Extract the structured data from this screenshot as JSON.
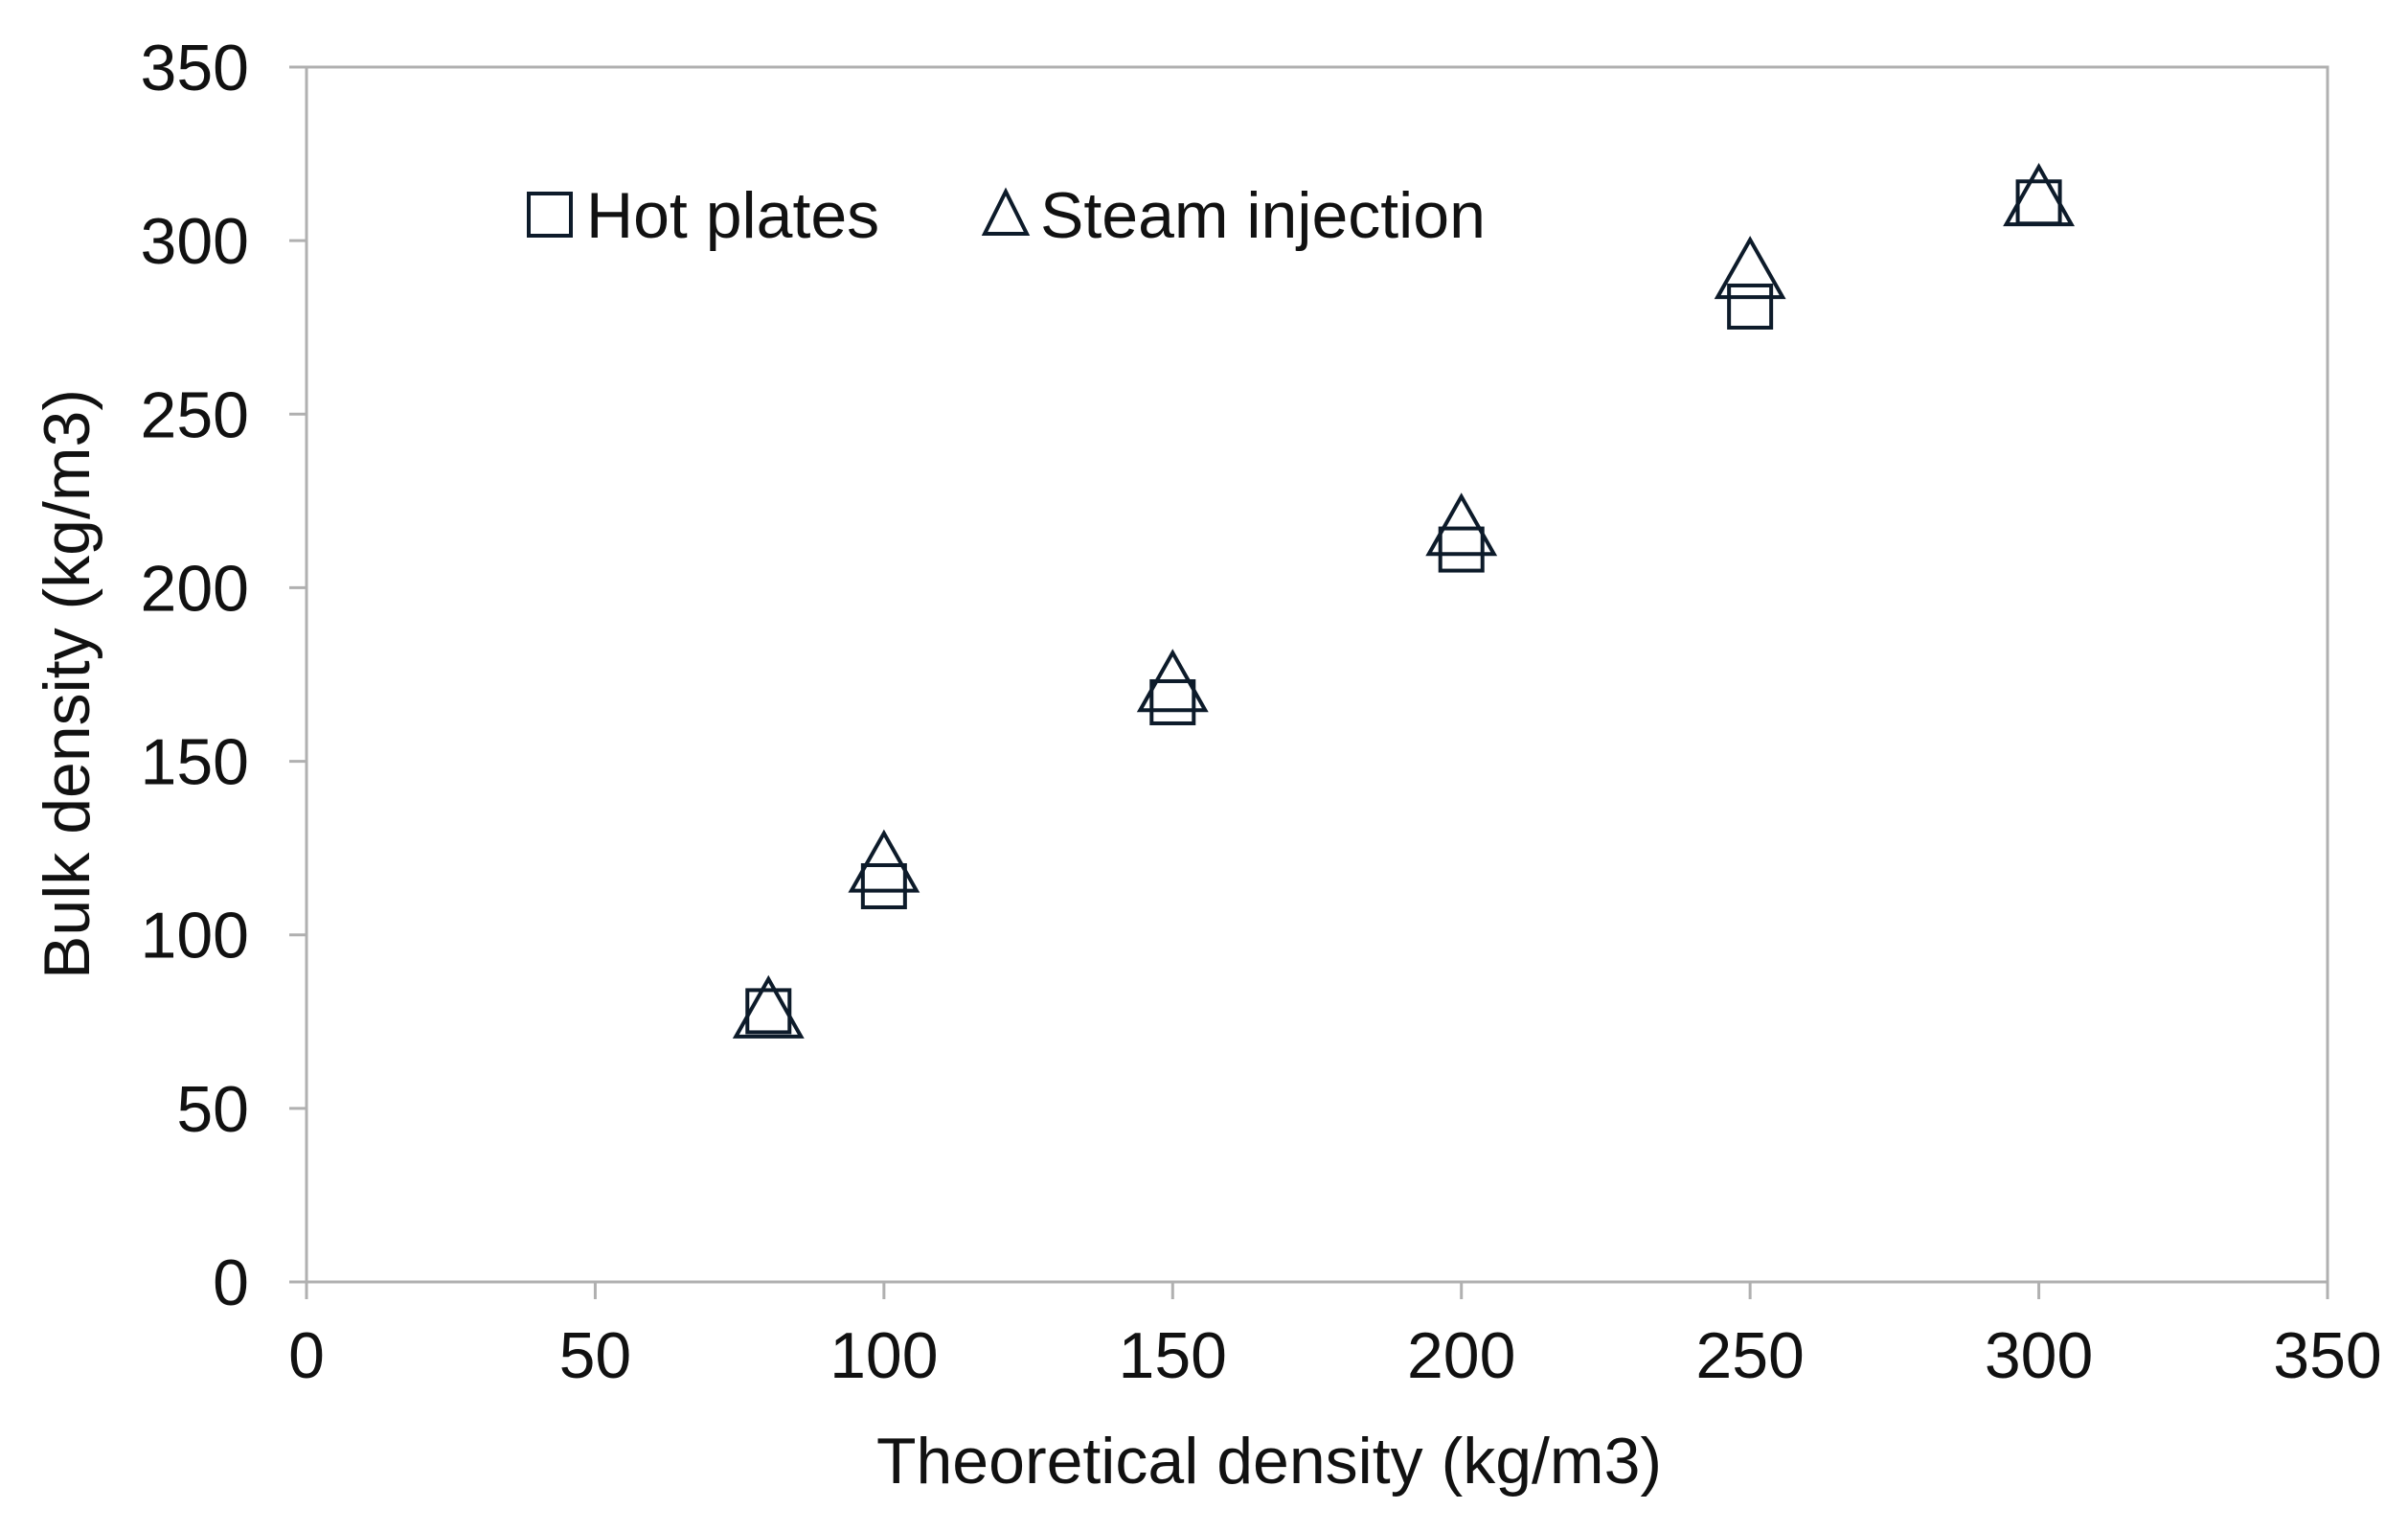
{
  "chart_data": {
    "type": "scatter",
    "title": "",
    "xlabel": "Theoretical density (kg/m3)",
    "ylabel": "Bulk density (kg/m3)",
    "xlim": [
      0,
      350
    ],
    "ylim": [
      0,
      350
    ],
    "xticks": [
      "0",
      "50",
      "100",
      "150",
      "200",
      "250",
      "300",
      "350"
    ],
    "yticks": [
      "0",
      "50",
      "100",
      "150",
      "200",
      "250",
      "300",
      "350"
    ],
    "grid": false,
    "legend_position": "top-left",
    "series": [
      {
        "name": "Hot plates",
        "marker": "square",
        "color": "#0d1b2a",
        "points": [
          {
            "x": 80,
            "y": 78
          },
          {
            "x": 100,
            "y": 114
          },
          {
            "x": 150,
            "y": 167
          },
          {
            "x": 200,
            "y": 211
          },
          {
            "x": 250,
            "y": 281
          },
          {
            "x": 300,
            "y": 311
          }
        ]
      },
      {
        "name": "Steam injection",
        "marker": "triangle",
        "color": "#0d1b2a",
        "points": [
          {
            "x": 80,
            "y": 77
          },
          {
            "x": 100,
            "y": 119
          },
          {
            "x": 150,
            "y": 171
          },
          {
            "x": 200,
            "y": 216
          },
          {
            "x": 250,
            "y": 290
          },
          {
            "x": 300,
            "y": 311
          }
        ]
      }
    ]
  }
}
